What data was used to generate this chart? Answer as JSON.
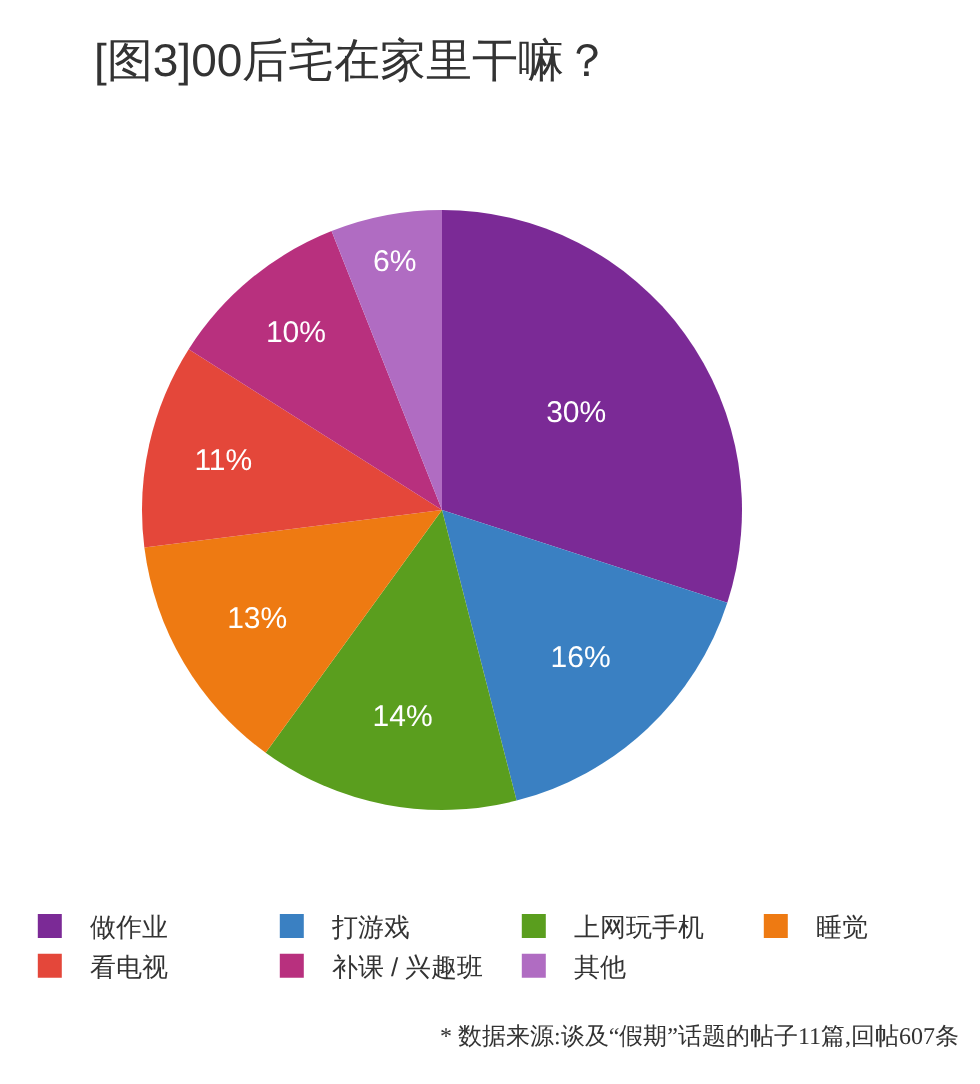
{
  "chart_data": {
    "type": "pie",
    "title": "[图3]00后宅在家里干嘛？",
    "categories": [
      "做作业",
      "打游戏",
      "上网玩手机",
      "睡觉",
      "看电视",
      "补课 / 兴趣班",
      "其他"
    ],
    "values": [
      30,
      16,
      14,
      13,
      11,
      10,
      6
    ],
    "value_labels": [
      "30%",
      "16%",
      "14%",
      "13%",
      "11%",
      "10%",
      "6%"
    ],
    "colors": [
      "#7b2a96",
      "#3a80c2",
      "#5a9e1e",
      "#ee7a12",
      "#e4473a",
      "#b8307e",
      "#b06cc2"
    ],
    "legend": "bottom",
    "annotations": [
      "* 数据来源:谈及“假期”话题的帖子11篇,回帖607条"
    ]
  }
}
